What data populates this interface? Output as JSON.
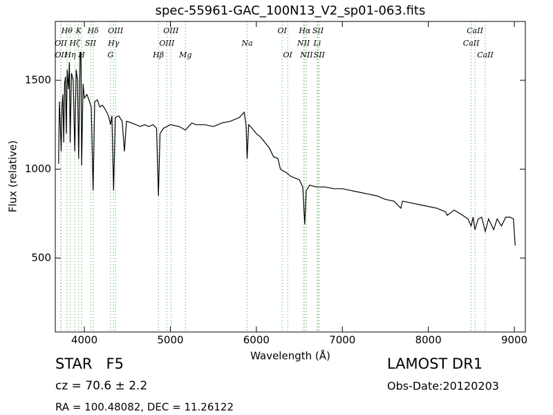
{
  "chart_data": {
    "type": "line",
    "title": "spec-55961-GAC_100N13_V2_sp01-063.fits",
    "x_label": "Wavelength (Å)",
    "y_label": "Flux (relative)",
    "color": "#000000",
    "line_color": "#66bb66",
    "xlim": [
      3662,
      9128
    ],
    "ylim": [
      84,
      1831
    ],
    "xticks": [
      4000,
      5000,
      6000,
      7000,
      8000,
      9000
    ],
    "yticks": [
      500,
      1000,
      1500
    ],
    "x": [
      3700,
      3710,
      3720,
      3730,
      3740,
      3750,
      3760,
      3770,
      3780,
      3790,
      3800,
      3815,
      3825,
      3835,
      3850,
      3870,
      3889,
      3905,
      3920,
      3934,
      3950,
      3960,
      3968,
      3985,
      4000,
      4030,
      4060,
      4080,
      4102,
      4120,
      4150,
      4180,
      4210,
      4250,
      4280,
      4304,
      4320,
      4340,
      4360,
      4400,
      4440,
      4466,
      4490,
      4550,
      4600,
      4650,
      4700,
      4750,
      4800,
      4840,
      4861,
      4880,
      4920,
      4960,
      5000,
      5100,
      5175,
      5250,
      5300,
      5400,
      5500,
      5600,
      5700,
      5800,
      5860,
      5880,
      5893,
      5910,
      5950,
      6000,
      6050,
      6100,
      6150,
      6200,
      6250,
      6280,
      6350,
      6400,
      6450,
      6500,
      6540,
      6563,
      6580,
      6620,
      6700,
      6800,
      6900,
      7000,
      7100,
      7200,
      7300,
      7400,
      7500,
      7600,
      7680,
      7700,
      7800,
      7900,
      8000,
      8100,
      8200,
      8220,
      8300,
      8400,
      8460,
      8498,
      8520,
      8542,
      8580,
      8620,
      8662,
      8700,
      8760,
      8800,
      8850,
      8900,
      8950,
      8990,
      9010
    ],
    "values": [
      1030,
      1380,
      1250,
      1100,
      1350,
      1420,
      1150,
      1480,
      1520,
      1200,
      1560,
      1450,
      1600,
      1150,
      1540,
      1500,
      1100,
      1560,
      1500,
      1060,
      1620,
      1660,
      1020,
      1480,
      1400,
      1420,
      1380,
      1350,
      880,
      1380,
      1390,
      1350,
      1360,
      1330,
      1300,
      1250,
      1300,
      880,
      1290,
      1300,
      1270,
      1100,
      1270,
      1260,
      1250,
      1240,
      1250,
      1240,
      1250,
      1230,
      850,
      1200,
      1230,
      1240,
      1250,
      1240,
      1220,
      1260,
      1250,
      1250,
      1240,
      1260,
      1270,
      1290,
      1320,
      1250,
      1060,
      1250,
      1230,
      1200,
      1180,
      1150,
      1120,
      1070,
      1060,
      1000,
      980,
      960,
      950,
      940,
      900,
      690,
      880,
      910,
      900,
      900,
      890,
      890,
      880,
      870,
      860,
      850,
      830,
      820,
      780,
      820,
      810,
      800,
      790,
      780,
      760,
      740,
      770,
      740,
      720,
      680,
      730,
      660,
      720,
      730,
      650,
      720,
      660,
      720,
      680,
      730,
      730,
      720,
      570
    ],
    "spectral_lines": [
      [
        {
          "label": "Hθ",
          "wavelength": 3798
        },
        {
          "label": "K",
          "wavelength": 3934
        },
        {
          "label": "Hδ",
          "wavelength": 4102
        },
        {
          "label": "OIII",
          "wavelength": 4363
        },
        {
          "label": "OIII",
          "wavelength": 5007
        },
        {
          "label": "OI",
          "wavelength": 6300
        },
        {
          "label": "Hα",
          "wavelength": 6563
        },
        {
          "label": "SII",
          "wavelength": 6716
        },
        {
          "label": "CaII",
          "wavelength": 8542
        }
      ],
      [
        {
          "label": "OII",
          "wavelength": 3726
        },
        {
          "label": "Hζ",
          "wavelength": 3889
        },
        {
          "label": "SII",
          "wavelength": 4072
        },
        {
          "label": "Hγ",
          "wavelength": 4340
        },
        {
          "label": "OIII",
          "wavelength": 4959
        },
        {
          "label": "Na",
          "wavelength": 5893
        },
        {
          "label": "NII",
          "wavelength": 6548
        },
        {
          "label": "Li",
          "wavelength": 6708
        },
        {
          "label": "CaII",
          "wavelength": 8498
        }
      ],
      [
        {
          "label": "OII",
          "wavelength": 3729
        },
        {
          "label": "Hη",
          "wavelength": 3835
        },
        {
          "label": "H",
          "wavelength": 3968
        },
        {
          "label": "G",
          "wavelength": 4304
        },
        {
          "label": "Hβ",
          "wavelength": 4861
        },
        {
          "label": "Mg",
          "wavelength": 5175
        },
        {
          "label": "OI",
          "wavelength": 6364
        },
        {
          "label": "NII",
          "wavelength": 6583
        },
        {
          "label": "SII",
          "wavelength": 6731
        },
        {
          "label": "CaII",
          "wavelength": 8662
        }
      ]
    ]
  },
  "info": {
    "object": "STAR   F5",
    "redshift": "cz = 70.6 ± 2.2",
    "coordinates": "RA = 100.48082, DEC = 11.26122",
    "survey": "LAMOST DR1",
    "obs_date": "Obs-Date:20120203"
  }
}
